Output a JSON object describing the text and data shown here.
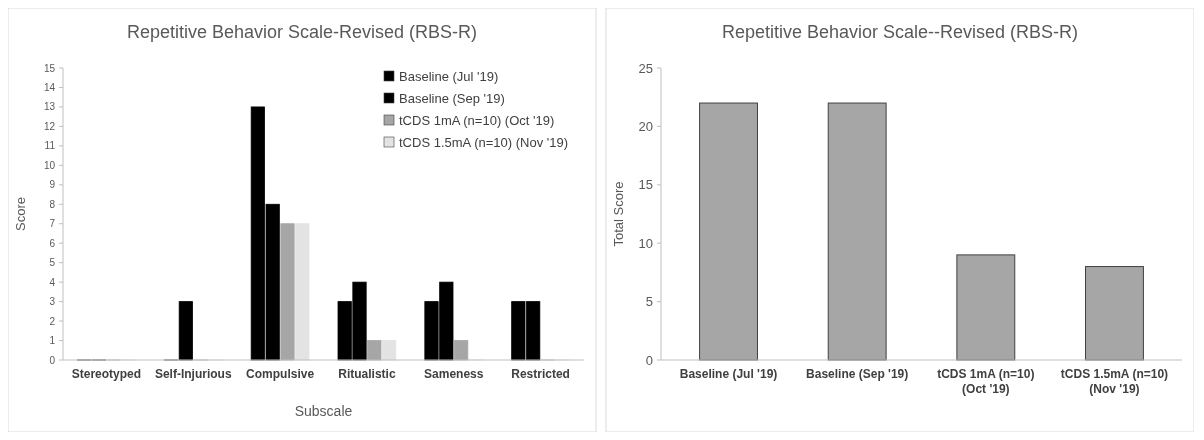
{
  "chart_data": [
    {
      "type": "bar",
      "title": "Repetitive Behavior Scale-Revised (RBS-R)",
      "xlabel": "Subscale",
      "ylabel": "Score",
      "categories": [
        "Stereotyped",
        "Self-Injurious",
        "Compulsive",
        "Ritualistic",
        "Sameness",
        "Restricted"
      ],
      "series": [
        {
          "name": "Baseline (Jul '19)",
          "color": "#000000",
          "values": [
            0,
            0,
            13,
            3,
            3,
            3
          ]
        },
        {
          "name": "Baseline (Sep '19)",
          "color": "#000000",
          "values": [
            0,
            3,
            8,
            4,
            4,
            3
          ]
        },
        {
          "name": "tCDS 1mA (n=10) (Oct '19)",
          "color": "#a6a6a6",
          "values": [
            0,
            0,
            7,
            1,
            1,
            0
          ]
        },
        {
          "name": "tCDS 1.5mA (n=10) (Nov '19)",
          "color": "#e3e3e3",
          "values": [
            0,
            0,
            7,
            1,
            0,
            0
          ]
        }
      ],
      "ylim": [
        0,
        15
      ],
      "yticks": [
        0,
        1,
        2,
        3,
        4,
        5,
        6,
        7,
        8,
        9,
        10,
        11,
        12,
        13,
        14,
        15
      ],
      "grid": false,
      "legend": "top right"
    },
    {
      "type": "bar",
      "title": "Repetitive Behavior Scale--Revised (RBS-R)",
      "ylabel": "Total Score",
      "categories": [
        "Baseline (Jul '19)",
        "Baseline (Sep '19)",
        "tCDS 1mA (n=10)\n(Oct '19)",
        "tCDS 1.5mA (n=10)\n(Nov '19)"
      ],
      "values": [
        22,
        22,
        9,
        8
      ],
      "color": "#a6a6a6",
      "ylim": [
        0,
        25
      ],
      "yticks": [
        0,
        5,
        10,
        15,
        20,
        25
      ],
      "grid": false
    }
  ]
}
